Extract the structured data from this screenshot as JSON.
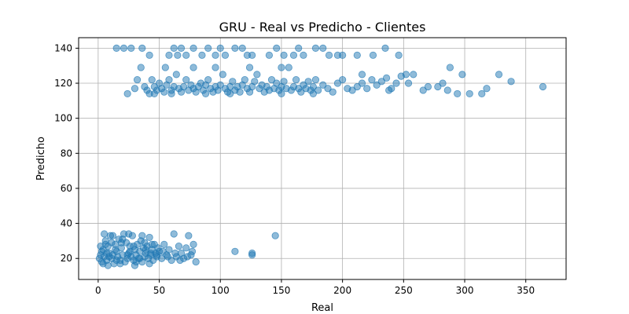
{
  "chart_data": {
    "type": "scatter",
    "title": "GRU - Real vs Predicho - Clientes",
    "xlabel": "Real",
    "ylabel": "Predicho",
    "xlim": [
      -16,
      383
    ],
    "ylim": [
      8,
      146
    ],
    "xticks": [
      0,
      50,
      100,
      150,
      200,
      250,
      300,
      350
    ],
    "yticks": [
      20,
      40,
      60,
      80,
      100,
      120,
      140
    ],
    "grid": true,
    "marker_color": "#1f77b4",
    "marker_alpha": 0.5,
    "series": [
      {
        "points": [
          [
            1,
            20
          ],
          [
            2,
            22
          ],
          [
            3,
            18
          ],
          [
            4,
            25
          ],
          [
            5,
            21
          ],
          [
            6,
            30
          ],
          [
            7,
            19
          ],
          [
            8,
            27
          ],
          [
            9,
            23
          ],
          [
            10,
            33
          ],
          [
            11,
            20
          ],
          [
            12,
            22
          ],
          [
            13,
            17
          ],
          [
            14,
            28
          ],
          [
            15,
            24
          ],
          [
            16,
            21
          ],
          [
            17,
            31
          ],
          [
            18,
            19
          ],
          [
            19,
            26
          ],
          [
            20,
            22
          ],
          [
            21,
            34
          ],
          [
            22,
            18
          ],
          [
            23,
            29
          ],
          [
            24,
            20
          ],
          [
            25,
            23
          ],
          [
            26,
            27
          ],
          [
            27,
            21
          ],
          [
            28,
            33
          ],
          [
            29,
            19
          ],
          [
            30,
            25
          ],
          [
            31,
            22
          ],
          [
            32,
            28
          ],
          [
            33,
            20
          ],
          [
            34,
            24
          ],
          [
            35,
            30
          ],
          [
            36,
            18
          ],
          [
            37,
            26
          ],
          [
            38,
            21
          ],
          [
            39,
            23
          ],
          [
            40,
            27
          ],
          [
            41,
            20
          ],
          [
            42,
            32
          ],
          [
            43,
            22
          ],
          [
            44,
            25
          ],
          [
            45,
            19
          ],
          [
            46,
            28
          ],
          [
            47,
            23
          ],
          [
            48,
            21
          ],
          [
            49,
            26
          ],
          [
            50,
            24
          ],
          [
            52,
            20
          ],
          [
            54,
            28
          ],
          [
            56,
            22
          ],
          [
            58,
            25
          ],
          [
            60,
            19
          ],
          [
            62,
            34
          ],
          [
            64,
            21
          ],
          [
            66,
            27
          ],
          [
            68,
            23
          ],
          [
            70,
            20
          ],
          [
            72,
            26
          ],
          [
            74,
            33
          ],
          [
            76,
            22
          ],
          [
            78,
            28
          ],
          [
            80,
            18
          ],
          [
            5,
            34
          ],
          [
            8,
            16
          ],
          [
            12,
            33
          ],
          [
            18,
            17
          ],
          [
            25,
            34
          ],
          [
            30,
            16
          ],
          [
            36,
            33
          ],
          [
            42,
            17
          ],
          [
            3,
            24
          ],
          [
            6,
            28
          ],
          [
            9,
            21
          ],
          [
            14,
            25
          ],
          [
            19,
            29
          ],
          [
            24,
            22
          ],
          [
            29,
            27
          ],
          [
            34,
            20
          ],
          [
            39,
            25
          ],
          [
            44,
            28
          ],
          [
            48,
            22
          ],
          [
            53,
            24
          ],
          [
            57,
            21
          ],
          [
            63,
            23
          ],
          [
            67,
            19
          ],
          [
            73,
            21
          ],
          [
            77,
            24
          ],
          [
            2,
            27
          ],
          [
            4,
            17
          ],
          [
            7,
            23
          ],
          [
            11,
            29
          ],
          [
            15,
            19
          ],
          [
            20,
            31
          ],
          [
            26,
            24
          ],
          [
            31,
            18
          ],
          [
            38,
            29
          ],
          [
            43,
            23
          ],
          [
            112,
            24
          ],
          [
            126,
            22
          ],
          [
            126,
            23
          ],
          [
            145,
            33
          ],
          [
            15,
            140
          ],
          [
            21,
            140
          ],
          [
            27,
            140
          ],
          [
            36,
            140
          ],
          [
            42,
            136
          ],
          [
            55,
            129
          ],
          [
            58,
            136
          ],
          [
            62,
            140
          ],
          [
            65,
            136
          ],
          [
            68,
            140
          ],
          [
            72,
            136
          ],
          [
            78,
            140
          ],
          [
            85,
            136
          ],
          [
            90,
            140
          ],
          [
            96,
            136
          ],
          [
            100,
            140
          ],
          [
            104,
            136
          ],
          [
            112,
            140
          ],
          [
            118,
            140
          ],
          [
            122,
            136
          ],
          [
            126,
            136
          ],
          [
            140,
            136
          ],
          [
            146,
            140
          ],
          [
            152,
            136
          ],
          [
            160,
            136
          ],
          [
            164,
            140
          ],
          [
            168,
            136
          ],
          [
            178,
            140
          ],
          [
            184,
            140
          ],
          [
            189,
            136
          ],
          [
            196,
            136
          ],
          [
            200,
            136
          ],
          [
            212,
            136
          ],
          [
            225,
            136
          ],
          [
            235,
            140
          ],
          [
            246,
            136
          ],
          [
            30,
            117
          ],
          [
            32,
            122
          ],
          [
            35,
            129
          ],
          [
            38,
            118
          ],
          [
            40,
            116
          ],
          [
            42,
            114
          ],
          [
            44,
            122
          ],
          [
            46,
            118
          ],
          [
            48,
            116
          ],
          [
            50,
            120
          ],
          [
            52,
            117
          ],
          [
            54,
            115
          ],
          [
            56,
            119
          ],
          [
            58,
            122
          ],
          [
            60,
            116
          ],
          [
            62,
            118
          ],
          [
            64,
            125
          ],
          [
            66,
            117
          ],
          [
            68,
            115
          ],
          [
            70,
            118
          ],
          [
            72,
            122
          ],
          [
            74,
            116
          ],
          [
            76,
            119
          ],
          [
            78,
            117
          ],
          [
            80,
            115
          ],
          [
            82,
            118
          ],
          [
            84,
            120
          ],
          [
            86,
            116
          ],
          [
            88,
            119
          ],
          [
            90,
            122
          ],
          [
            92,
            117
          ],
          [
            94,
            115
          ],
          [
            96,
            118
          ],
          [
            98,
            116
          ],
          [
            100,
            119
          ],
          [
            102,
            125
          ],
          [
            104,
            117
          ],
          [
            106,
            115
          ],
          [
            108,
            118
          ],
          [
            110,
            121
          ],
          [
            112,
            116
          ],
          [
            114,
            118
          ],
          [
            116,
            115
          ],
          [
            118,
            119
          ],
          [
            120,
            122
          ],
          [
            122,
            117
          ],
          [
            124,
            115
          ],
          [
            126,
            118
          ],
          [
            128,
            121
          ],
          [
            130,
            125
          ],
          [
            132,
            117
          ],
          [
            134,
            119
          ],
          [
            136,
            115
          ],
          [
            138,
            118
          ],
          [
            140,
            116
          ],
          [
            142,
            122
          ],
          [
            144,
            117
          ],
          [
            146,
            120
          ],
          [
            148,
            116
          ],
          [
            150,
            118
          ],
          [
            152,
            121
          ],
          [
            154,
            117
          ],
          [
            156,
            129
          ],
          [
            158,
            116
          ],
          [
            160,
            118
          ],
          [
            162,
            122
          ],
          [
            164,
            117
          ],
          [
            166,
            115
          ],
          [
            168,
            119
          ],
          [
            170,
            117
          ],
          [
            172,
            121
          ],
          [
            174,
            116
          ],
          [
            176,
            118
          ],
          [
            178,
            122
          ],
          [
            180,
            116
          ],
          [
            184,
            119
          ],
          [
            188,
            117
          ],
          [
            192,
            115
          ],
          [
            196,
            120
          ],
          [
            200,
            122
          ],
          [
            204,
            117
          ],
          [
            208,
            116
          ],
          [
            212,
            118
          ],
          [
            216,
            120
          ],
          [
            220,
            117
          ],
          [
            224,
            122
          ],
          [
            228,
            119
          ],
          [
            232,
            121
          ],
          [
            236,
            123
          ],
          [
            240,
            117
          ],
          [
            244,
            120
          ],
          [
            248,
            124
          ],
          [
            252,
            125
          ],
          [
            258,
            125
          ],
          [
            266,
            116
          ],
          [
            270,
            118
          ],
          [
            278,
            118
          ],
          [
            282,
            120
          ],
          [
            286,
            116
          ],
          [
            288,
            129
          ],
          [
            294,
            114
          ],
          [
            298,
            125
          ],
          [
            304,
            114
          ],
          [
            314,
            114
          ],
          [
            318,
            117
          ],
          [
            328,
            125
          ],
          [
            338,
            121
          ],
          [
            364,
            118
          ],
          [
            46,
            114
          ],
          [
            60,
            114
          ],
          [
            88,
            114
          ],
          [
            108,
            114
          ],
          [
            150,
            114
          ],
          [
            176,
            114
          ],
          [
            24,
            114
          ],
          [
            78,
            129
          ],
          [
            96,
            129
          ],
          [
            124,
            129
          ],
          [
            150,
            129
          ],
          [
            216,
            125
          ],
          [
            238,
            116
          ],
          [
            254,
            120
          ]
        ]
      }
    ]
  }
}
